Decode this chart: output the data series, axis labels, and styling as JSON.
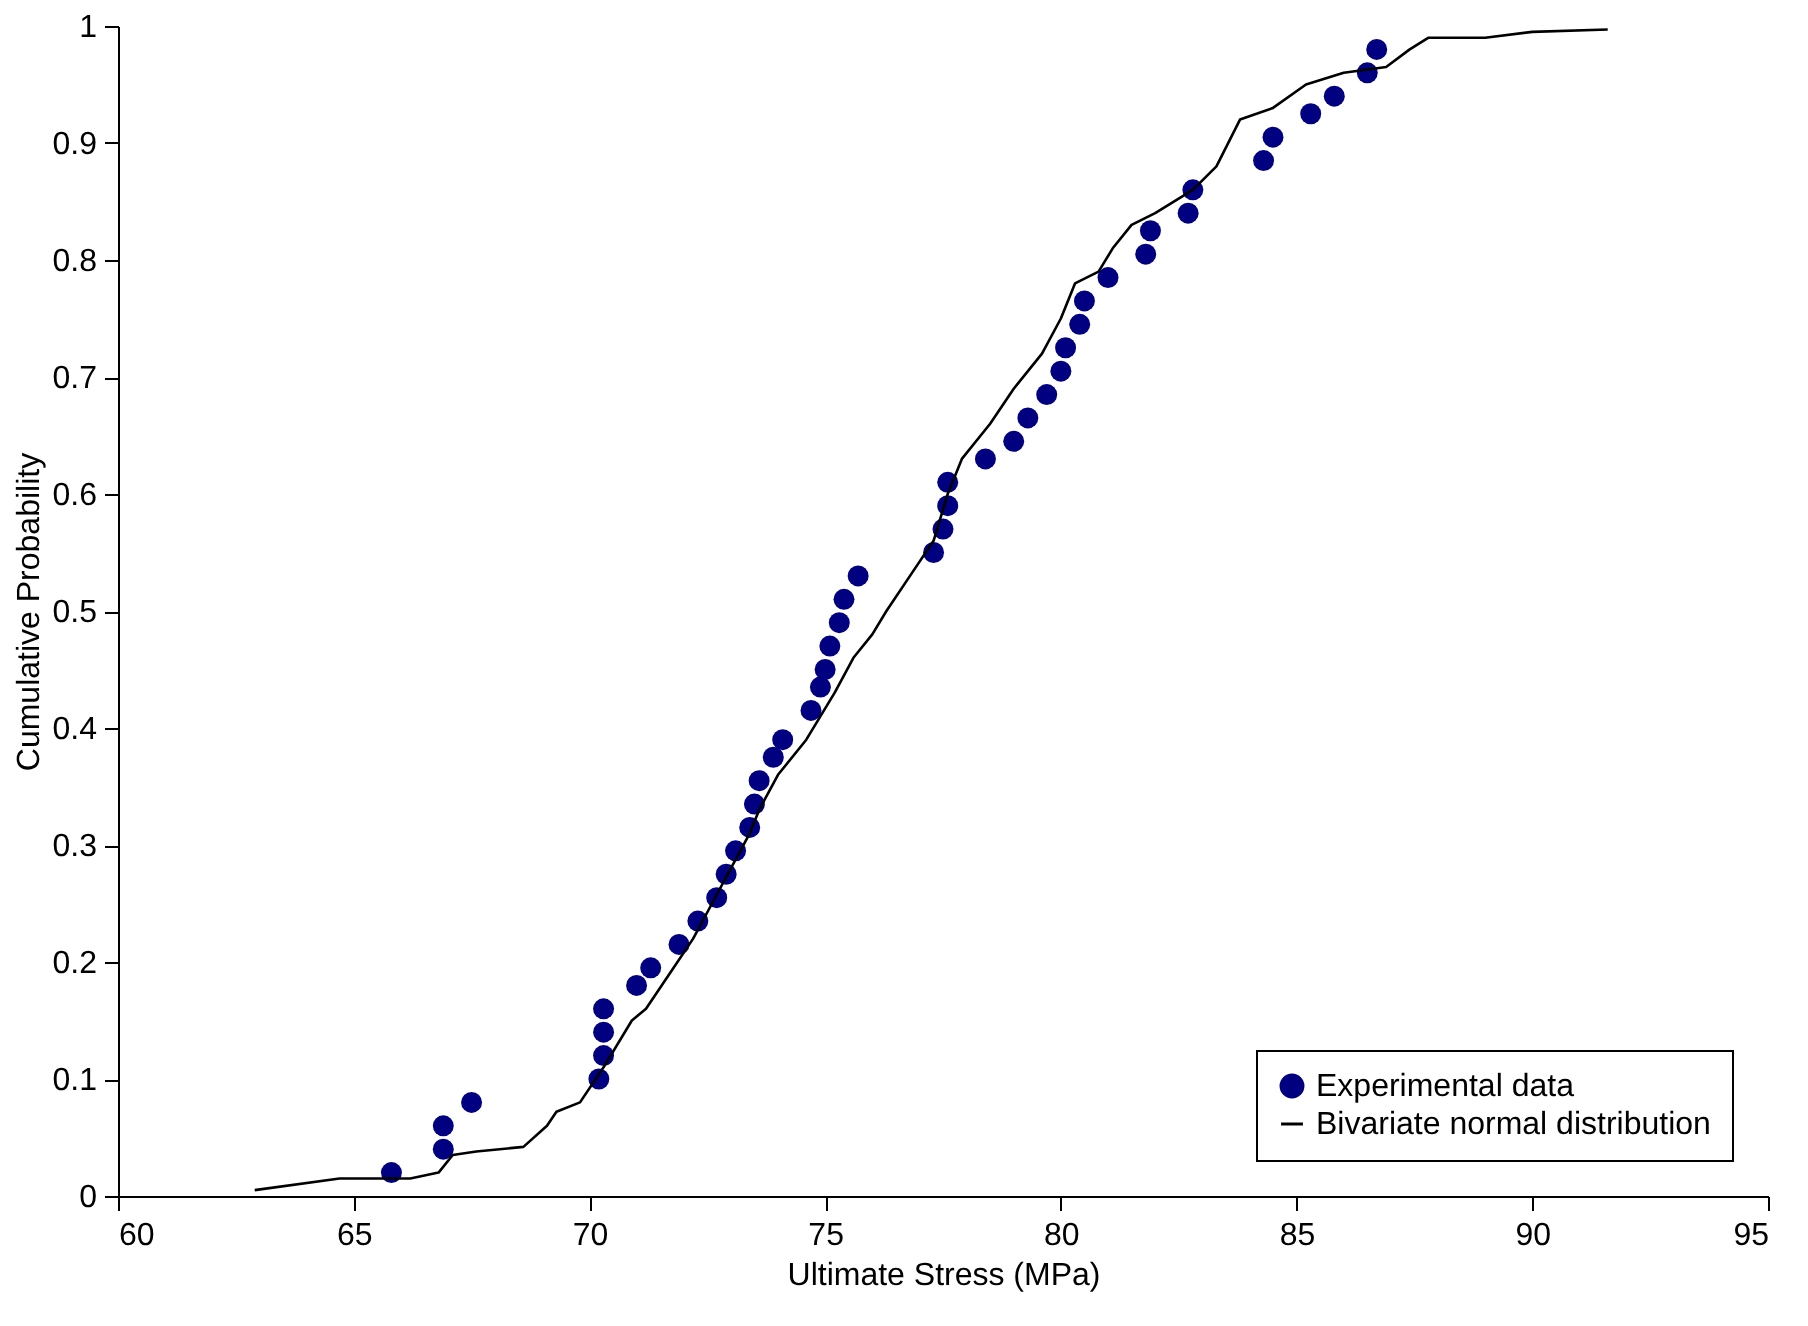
{
  "chart_data": {
    "type": "scatter",
    "xlabel": "Ultimate Stress (MPa)",
    "ylabel": "Cumulative Probability",
    "xlim": [
      60,
      95
    ],
    "xticks": [
      60,
      65,
      70,
      75,
      80,
      85,
      90,
      95
    ],
    "ylim": [
      0,
      1
    ],
    "yticks": [
      0,
      0.1,
      0.2,
      0.3,
      0.4,
      0.5,
      0.6,
      0.7,
      0.8,
      0.9,
      1
    ],
    "grid": false,
    "legend": "bottom right",
    "series": [
      {
        "name": "Experimental data",
        "marker": "circle",
        "color": "#000080",
        "x": [
          65.8,
          66.9,
          66.9,
          67.5,
          70.2,
          70.3,
          70.3,
          70.3,
          71.0,
          71.3,
          71.9,
          72.3,
          72.7,
          72.9,
          73.1,
          73.4,
          73.5,
          73.6,
          73.9,
          74.1,
          74.7,
          74.9,
          75.0,
          75.1,
          75.3,
          75.4,
          75.7,
          77.3,
          77.5,
          77.6,
          77.6,
          78.4,
          79.0,
          79.3,
          79.7,
          80.0,
          80.1,
          80.4,
          80.5,
          81.0,
          81.8,
          81.9,
          82.7,
          82.8,
          84.3,
          84.5,
          85.3,
          85.8,
          86.5,
          86.7
        ],
        "values": [
          0.02,
          0.04,
          0.06,
          0.08,
          0.1,
          0.12,
          0.14,
          0.16,
          0.18,
          0.195,
          0.215,
          0.235,
          0.255,
          0.275,
          0.295,
          0.315,
          0.335,
          0.355,
          0.375,
          0.39,
          0.415,
          0.435,
          0.45,
          0.47,
          0.49,
          0.51,
          0.53,
          0.55,
          0.57,
          0.59,
          0.61,
          0.63,
          0.645,
          0.665,
          0.685,
          0.705,
          0.725,
          0.745,
          0.765,
          0.785,
          0.805,
          0.825,
          0.84,
          0.86,
          0.885,
          0.905,
          0.925,
          0.94,
          0.96,
          0.98
        ]
      },
      {
        "name": "Bivariate normal distribution",
        "type": "line",
        "marker": "none",
        "line_style": "solid",
        "color": "#000000",
        "x": [
          62.9,
          64.7,
          66.2,
          66.8,
          67.1,
          67.6,
          68.6,
          69.1,
          69.3,
          69.8,
          70.3,
          70.9,
          71.2,
          71.7,
          72.2,
          72.6,
          73.0,
          73.4,
          73.6,
          74.0,
          74.6,
          75.2,
          75.6,
          76.0,
          76.3,
          76.8,
          77.3,
          77.6,
          77.9,
          78.5,
          79.0,
          79.6,
          80.0,
          80.3,
          80.8,
          81.1,
          81.5,
          82.0,
          82.8,
          83.3,
          83.8,
          84.5,
          85.2,
          86.0,
          86.9,
          87.4,
          87.8,
          89.0,
          90.0,
          91.6
        ],
        "values": [
          0.005,
          0.015,
          0.015,
          0.02,
          0.035,
          0.038,
          0.042,
          0.06,
          0.072,
          0.08,
          0.11,
          0.15,
          0.16,
          0.19,
          0.22,
          0.25,
          0.28,
          0.31,
          0.33,
          0.36,
          0.39,
          0.43,
          0.46,
          0.48,
          0.5,
          0.53,
          0.56,
          0.6,
          0.63,
          0.66,
          0.69,
          0.72,
          0.75,
          0.78,
          0.79,
          0.81,
          0.83,
          0.84,
          0.86,
          0.88,
          0.92,
          0.93,
          0.95,
          0.96,
          0.965,
          0.98,
          0.99,
          0.99,
          0.995,
          0.997
        ]
      }
    ]
  }
}
